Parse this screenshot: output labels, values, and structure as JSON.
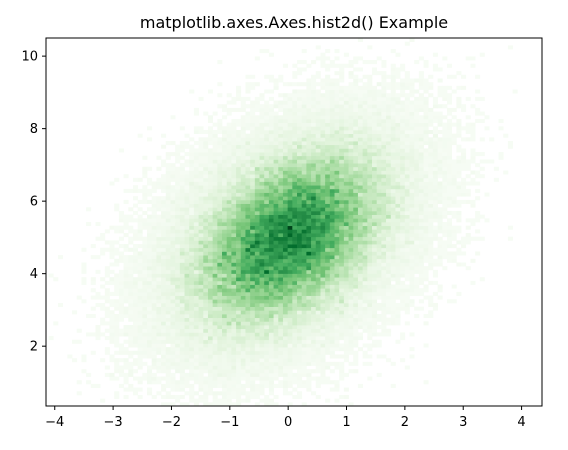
{
  "chart_data": {
    "type": "heatmap",
    "title": "matplotlib.axes.Axes.hist2d() Example",
    "xlabel": "",
    "ylabel": "",
    "xlim": [
      -4.15,
      4.35
    ],
    "ylim": [
      0.35,
      10.5
    ],
    "x_ticks": [
      -4,
      -3,
      -2,
      -1,
      0,
      1,
      2,
      3,
      4
    ],
    "x_tick_labels": [
      "−4",
      "−3",
      "−2",
      "−1",
      "0",
      "1",
      "2",
      "3",
      "4"
    ],
    "y_ticks": [
      2,
      4,
      6,
      8,
      10
    ],
    "y_tick_labels": [
      "2",
      "4",
      "6",
      "8",
      "10"
    ],
    "grid": false,
    "colormap": "Greens",
    "colormap_low": "#f7fcf5",
    "colormap_high": "#00441b",
    "distribution": {
      "kind": "bivariate-normal",
      "mean": [
        0,
        5
      ],
      "std": [
        1,
        1.5
      ],
      "correlation": 0.4
    },
    "bins": [
      100,
      100
    ],
    "empty_bins": "white"
  }
}
